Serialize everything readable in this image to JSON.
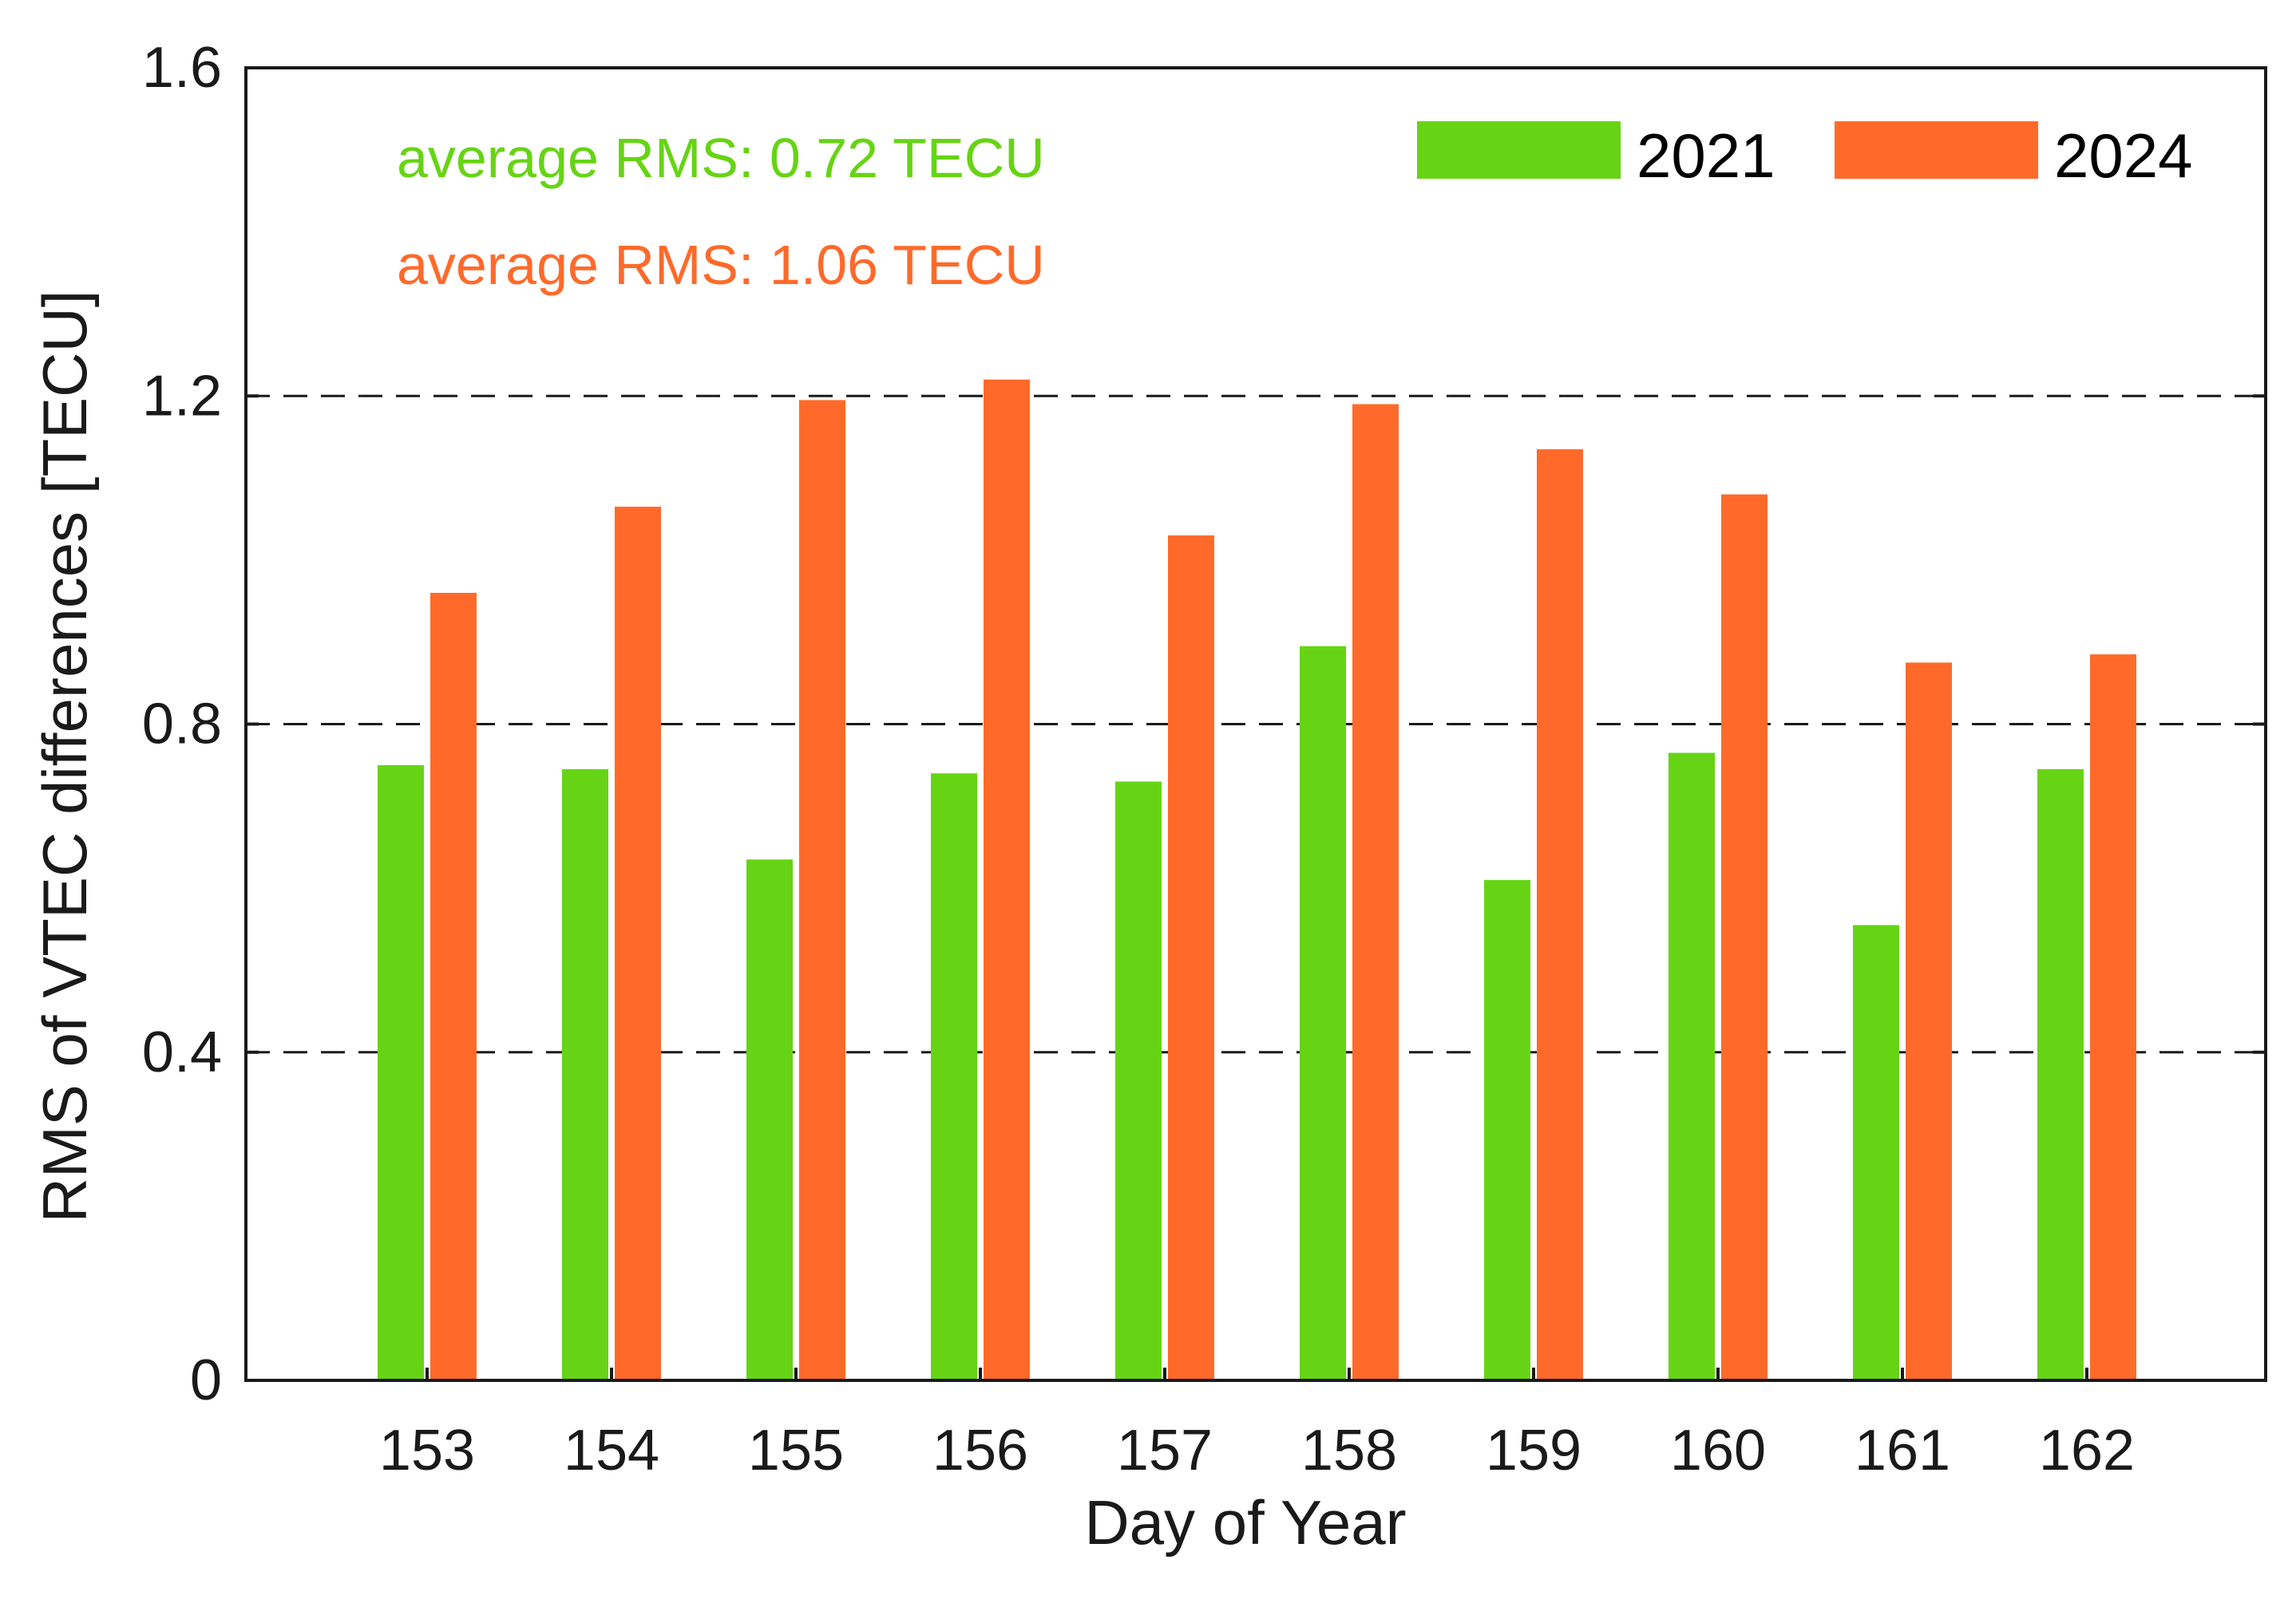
{
  "chart_data": {
    "type": "bar",
    "title": "",
    "xlabel": "Day of Year",
    "ylabel": "RMS of VTEC differences [TECU]",
    "ylim": [
      0,
      1.6
    ],
    "yticks": [
      0,
      0.4,
      0.8,
      1.2,
      1.6
    ],
    "ytick_labels": [
      "0",
      "0.4",
      "0.8",
      "1.2",
      "1.6"
    ],
    "grid": "dashed horizontal at 0.4, 0.8, 1.2",
    "categories": [
      "153",
      "154",
      "155",
      "156",
      "157",
      "158",
      "159",
      "160",
      "161",
      "162"
    ],
    "series": [
      {
        "name": "2021",
        "color": "#66d414",
        "values": [
          0.75,
          0.745,
          0.635,
          0.74,
          0.73,
          0.895,
          0.61,
          0.765,
          0.555,
          0.745
        ]
      },
      {
        "name": "2024",
        "color": "#ff6a2a",
        "values": [
          0.96,
          1.065,
          1.195,
          1.22,
          1.03,
          1.19,
          1.135,
          1.08,
          0.875,
          0.885
        ]
      }
    ],
    "legend_position": "top-right",
    "annotations": [
      {
        "text": "average RMS: 0.72 TECU",
        "color": "#66d414"
      },
      {
        "text": "average RMS: 1.06 TECU",
        "color": "#ff6a2a"
      }
    ]
  }
}
